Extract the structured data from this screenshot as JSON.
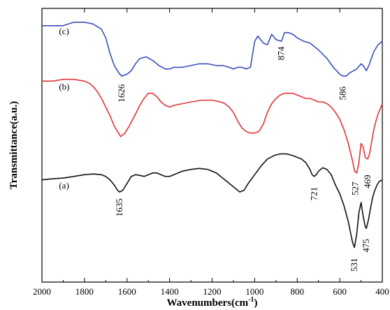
{
  "chart_data": {
    "type": "line",
    "xlabel": "Wavenumbers(cm",
    "xlabel_sup": "-1",
    "xlabel_end": ")",
    "ylabel": "Transmittance(a.u.)",
    "xlim": [
      2000,
      400
    ],
    "x_reversed": true,
    "y_ticks_shown": false,
    "x_ticks": [
      2000,
      1800,
      1600,
      1400,
      1200,
      1000,
      800,
      600,
      400
    ],
    "grid": false,
    "series": [
      {
        "name": "(c)",
        "color": "#3b4fb8",
        "x": [
          2000,
          1900,
          1850,
          1800,
          1760,
          1720,
          1700,
          1680,
          1660,
          1640,
          1626,
          1600,
          1580,
          1560,
          1540,
          1510,
          1480,
          1450,
          1420,
          1400,
          1380,
          1340,
          1300,
          1260,
          1220,
          1180,
          1150,
          1120,
          1100,
          1080,
          1060,
          1040,
          1020,
          1000,
          985,
          960,
          940,
          920,
          900,
          874,
          860,
          840,
          820,
          800,
          770,
          740,
          700,
          660,
          630,
          600,
          586,
          570,
          550,
          535,
          520,
          500,
          490,
          475,
          460,
          440,
          420,
          400
        ],
        "y": [
          6.8,
          6.8,
          6.9,
          6.9,
          6.85,
          6.7,
          6.45,
          6.0,
          5.65,
          5.45,
          5.35,
          5.4,
          5.5,
          5.7,
          5.85,
          5.9,
          5.8,
          5.65,
          5.55,
          5.55,
          5.6,
          5.6,
          5.65,
          5.7,
          5.7,
          5.65,
          5.65,
          5.6,
          5.55,
          5.6,
          5.6,
          5.55,
          5.6,
          6.35,
          6.5,
          6.3,
          6.25,
          6.55,
          6.4,
          6.35,
          6.6,
          6.6,
          6.55,
          6.45,
          6.35,
          6.3,
          6.1,
          5.85,
          5.6,
          5.4,
          5.35,
          5.35,
          5.45,
          5.5,
          5.55,
          5.7,
          5.65,
          5.5,
          5.7,
          6.05,
          6.25,
          6.35
        ]
      },
      {
        "name": "(b)",
        "color": "#e0343a",
        "x": [
          2000,
          1950,
          1900,
          1850,
          1800,
          1780,
          1760,
          1740,
          1720,
          1700,
          1680,
          1660,
          1640,
          1630,
          1610,
          1590,
          1560,
          1540,
          1520,
          1500,
          1480,
          1460,
          1440,
          1420,
          1400,
          1380,
          1340,
          1300,
          1250,
          1200,
          1160,
          1140,
          1120,
          1100,
          1080,
          1060,
          1040,
          1020,
          1000,
          980,
          960,
          940,
          920,
          900,
          880,
          860,
          840,
          820,
          800,
          780,
          760,
          740,
          720,
          700,
          680,
          660,
          640,
          620,
          600,
          580,
          570,
          560,
          550,
          540,
          530,
          520,
          510,
          500,
          490,
          480,
          469,
          460,
          450,
          440,
          430,
          420,
          410,
          400
        ],
        "y": [
          5.2,
          5.2,
          5.25,
          5.25,
          5.2,
          5.15,
          5.05,
          4.9,
          4.7,
          4.45,
          4.2,
          3.9,
          3.7,
          3.6,
          3.7,
          3.9,
          4.25,
          4.5,
          4.7,
          4.85,
          4.85,
          4.75,
          4.6,
          4.5,
          4.45,
          4.5,
          4.55,
          4.6,
          4.65,
          4.65,
          4.6,
          4.55,
          4.45,
          4.3,
          4.05,
          3.85,
          3.75,
          3.7,
          3.7,
          3.75,
          3.95,
          4.3,
          4.55,
          4.7,
          4.8,
          4.85,
          4.85,
          4.85,
          4.8,
          4.75,
          4.7,
          4.7,
          4.65,
          4.6,
          4.6,
          4.55,
          4.45,
          4.3,
          4.1,
          3.8,
          3.6,
          3.4,
          3.15,
          2.9,
          2.6,
          2.55,
          2.85,
          3.4,
          3.3,
          3.0,
          2.95,
          3.1,
          3.45,
          3.8,
          4.05,
          4.25,
          4.4,
          4.55
        ]
      },
      {
        "name": "(a)",
        "color": "#111111",
        "x": [
          2000,
          1950,
          1900,
          1850,
          1800,
          1760,
          1720,
          1700,
          1680,
          1660,
          1645,
          1635,
          1620,
          1600,
          1580,
          1560,
          1540,
          1520,
          1500,
          1480,
          1460,
          1440,
          1420,
          1400,
          1380,
          1340,
          1300,
          1260,
          1220,
          1180,
          1160,
          1140,
          1120,
          1100,
          1080,
          1070,
          1050,
          1030,
          1000,
          970,
          940,
          910,
          880,
          850,
          820,
          800,
          780,
          760,
          740,
          730,
          721,
          710,
          700,
          680,
          660,
          640,
          620,
          600,
          580,
          560,
          550,
          540,
          531,
          520,
          510,
          500,
          490,
          480,
          475,
          465,
          455,
          445,
          435,
          425,
          415,
          400
        ],
        "y": [
          2.35,
          2.38,
          2.4,
          2.45,
          2.5,
          2.52,
          2.5,
          2.45,
          2.35,
          2.2,
          2.05,
          2.0,
          2.05,
          2.25,
          2.45,
          2.5,
          2.48,
          2.45,
          2.5,
          2.55,
          2.55,
          2.5,
          2.45,
          2.45,
          2.5,
          2.6,
          2.65,
          2.68,
          2.65,
          2.55,
          2.45,
          2.35,
          2.25,
          2.15,
          2.05,
          2.0,
          2.05,
          2.25,
          2.5,
          2.75,
          2.95,
          3.05,
          3.1,
          3.1,
          3.05,
          3.0,
          2.95,
          2.85,
          2.65,
          2.5,
          2.45,
          2.5,
          2.6,
          2.7,
          2.65,
          2.5,
          2.2,
          1.95,
          1.6,
          1.15,
          0.85,
          0.55,
          0.4,
          0.8,
          1.4,
          1.7,
          1.3,
          1.0,
          0.95,
          1.2,
          1.55,
          1.85,
          2.05,
          2.2,
          2.3,
          2.35
        ]
      }
    ],
    "annotations": [
      {
        "text": "1626",
        "x": 1626,
        "y": 4.85
      },
      {
        "text": "874",
        "x": 874,
        "y": 6.0
      },
      {
        "text": "586",
        "x": 586,
        "y": 4.85
      },
      {
        "text": "527",
        "x": 527,
        "y": 2.1
      },
      {
        "text": "469",
        "x": 469,
        "y": 2.3
      },
      {
        "text": "1635",
        "x": 1635,
        "y": 1.55
      },
      {
        "text": "721",
        "x": 721,
        "y": 1.95
      },
      {
        "text": "531",
        "x": 531,
        "y": -0.1
      },
      {
        "text": "475",
        "x": 475,
        "y": 0.45
      }
    ],
    "series_tags": [
      {
        "text": "(c)",
        "x": 1920,
        "y": 6.55
      },
      {
        "text": "(b)",
        "x": 1920,
        "y": 4.95
      },
      {
        "text": "(a)",
        "x": 1920,
        "y": 2.1
      }
    ],
    "ylim": [
      -0.6,
      7.3
    ]
  }
}
